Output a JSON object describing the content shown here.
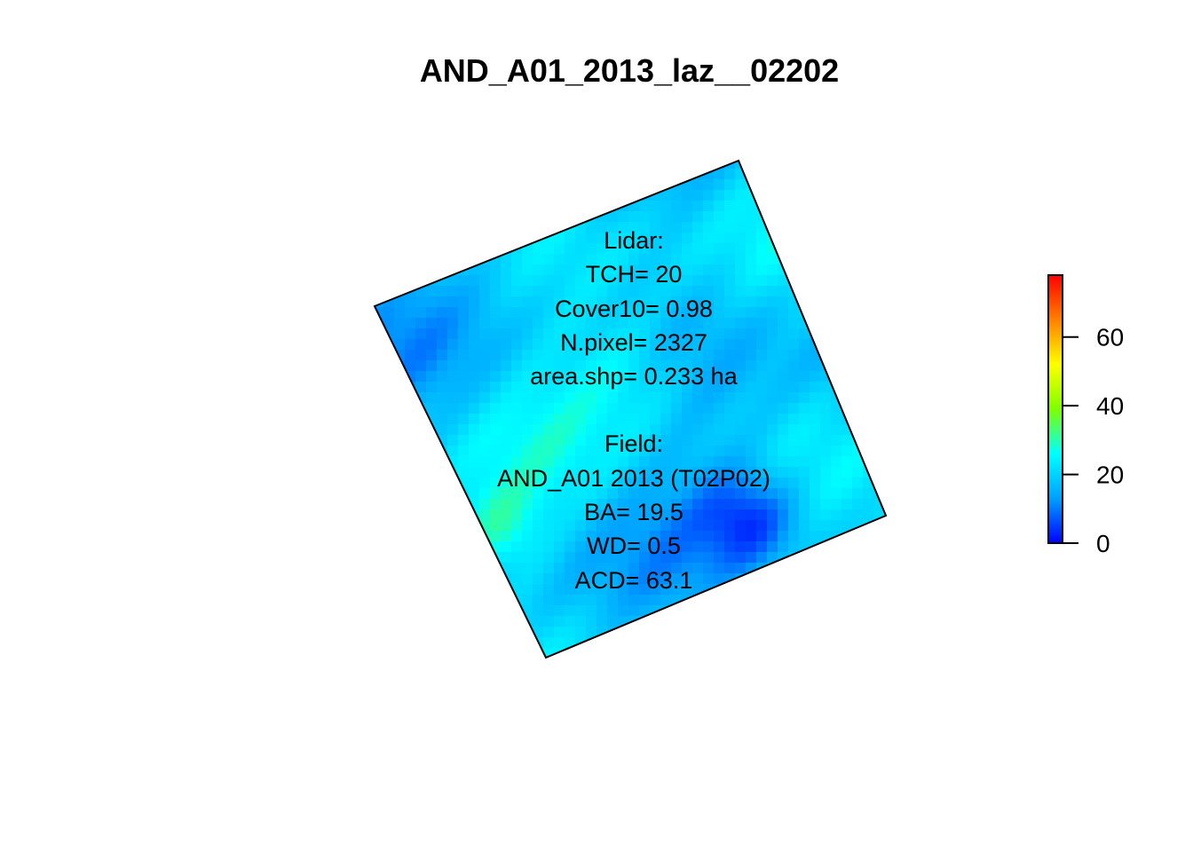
{
  "chart_data": {
    "type": "heatmap",
    "title": "AND_A01_2013_laz__02202",
    "xlabel": "",
    "ylabel": "",
    "colorbar": {
      "colors": [
        "#0000ff",
        "#00a0ff",
        "#00ffff",
        "#7fff00",
        "#ffff00",
        "#ff8000",
        "#ff0000"
      ],
      "range": [
        0,
        78
      ],
      "ticks": [
        0,
        20,
        40,
        60
      ],
      "tick_labels": [
        "0",
        "20",
        "40",
        "60"
      ]
    },
    "value_range_in_plot": [
      2,
      32
    ],
    "typical_value": 20,
    "annotation_lines": [
      "Lidar:",
      "TCH= 20",
      "Cover10= 0.98",
      "N.pixel= 2327",
      "area.shp= 0.233 ha",
      "",
      "Field:",
      "AND_A01 2013 (T02P02)",
      "BA= 19.5",
      "WD= 0.5",
      "ACD= 63.1"
    ],
    "grid": false,
    "legend": "colorbar right"
  }
}
